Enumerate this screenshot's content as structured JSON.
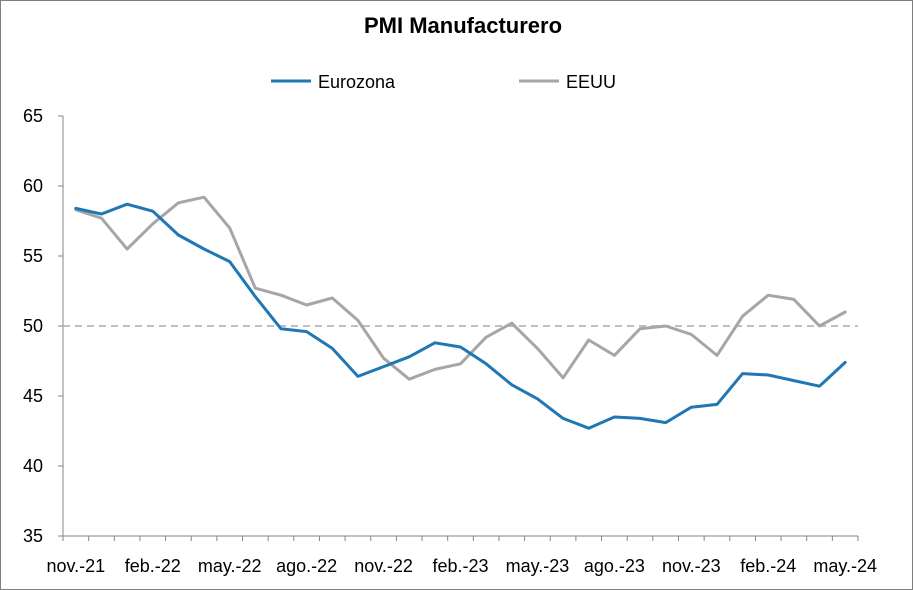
{
  "chart_data": {
    "type": "line",
    "title": "PMI Manufacturero",
    "xlabel": "",
    "ylabel": "",
    "ylim": [
      35,
      65
    ],
    "yticks": [
      35,
      40,
      45,
      50,
      55,
      60,
      65
    ],
    "x": [
      "nov.-21",
      "dic.-21",
      "ene.-22",
      "feb.-22",
      "mar.-22",
      "abr.-22",
      "may.-22",
      "jun.-22",
      "jul.-22",
      "ago.-22",
      "sep.-22",
      "oct.-22",
      "nov.-22",
      "dic.-22",
      "ene.-23",
      "feb.-23",
      "mar.-23",
      "abr.-23",
      "may.-23",
      "jun.-23",
      "jul.-23",
      "ago.-23",
      "sep.-23",
      "oct.-23",
      "nov.-23",
      "dic.-23",
      "ene.-24",
      "feb.-24",
      "mar.-24",
      "abr.-24",
      "may.-24"
    ],
    "xtick_labels": [
      "nov.-21",
      "feb.-22",
      "may.-22",
      "ago.-22",
      "nov.-22",
      "feb.-23",
      "may.-23",
      "ago.-23",
      "nov.-23",
      "feb.-24",
      "may.-24"
    ],
    "reference_line": 50,
    "legend_position": "top",
    "grid": false,
    "series": [
      {
        "name": "Eurozona",
        "color": "#1f77b4",
        "values": [
          58.4,
          58.0,
          58.7,
          58.2,
          56.5,
          55.5,
          54.6,
          52.1,
          49.8,
          49.6,
          48.4,
          46.4,
          47.1,
          47.8,
          48.8,
          48.5,
          47.3,
          45.8,
          44.8,
          43.4,
          42.7,
          43.5,
          43.4,
          43.1,
          44.2,
          44.4,
          46.6,
          46.5,
          46.1,
          45.7,
          47.4
        ]
      },
      {
        "name": "EEUU",
        "color": "#a6a6a6",
        "values": [
          58.3,
          57.7,
          55.5,
          57.3,
          58.8,
          59.2,
          57.0,
          52.7,
          52.2,
          51.5,
          52.0,
          50.4,
          47.7,
          46.2,
          46.9,
          47.3,
          49.2,
          50.2,
          48.4,
          46.3,
          49.0,
          47.9,
          49.8,
          50.0,
          49.4,
          47.9,
          50.7,
          52.2,
          51.9,
          50.0,
          51.0
        ]
      }
    ]
  }
}
